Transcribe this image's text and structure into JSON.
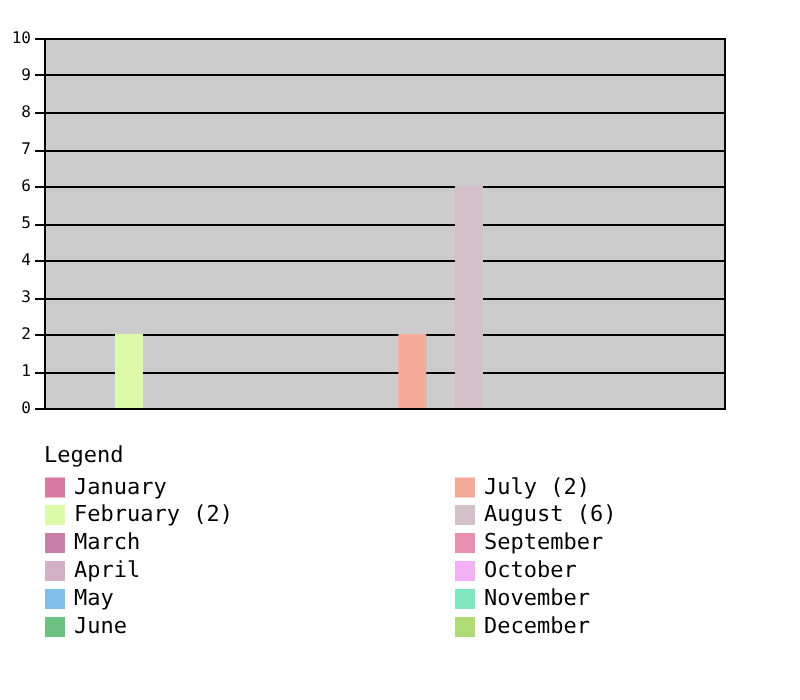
{
  "chart_data": {
    "type": "bar",
    "legend_title": "Legend",
    "categories": [
      null,
      null,
      null,
      null,
      null,
      null,
      null,
      null,
      null,
      null,
      null,
      null
    ],
    "series": [
      {
        "name": "January",
        "color": "#d87aa0",
        "values": [
          0,
          null,
          null,
          null,
          null,
          null,
          null,
          null,
          null,
          null,
          null,
          null
        ]
      },
      {
        "name": "February (2)",
        "color": "#ddfaa8",
        "values": [
          null,
          2,
          null,
          null,
          null,
          null,
          null,
          null,
          null,
          null,
          null,
          null
        ]
      },
      {
        "name": "March",
        "color": "#c880a8",
        "values": [
          null,
          null,
          0,
          null,
          null,
          null,
          null,
          null,
          null,
          null,
          null,
          null
        ]
      },
      {
        "name": "April",
        "color": "#d4b0c8",
        "values": [
          null,
          null,
          null,
          0,
          null,
          null,
          null,
          null,
          null,
          null,
          null,
          null
        ]
      },
      {
        "name": "May",
        "color": "#80c0e8",
        "values": [
          null,
          null,
          null,
          null,
          0,
          null,
          null,
          null,
          null,
          null,
          null,
          null
        ]
      },
      {
        "name": "June",
        "color": "#6cc080",
        "values": [
          null,
          null,
          null,
          null,
          null,
          0,
          null,
          null,
          null,
          null,
          null,
          null
        ]
      },
      {
        "name": "July (2)",
        "color": "#f4aa98",
        "values": [
          null,
          null,
          null,
          null,
          null,
          null,
          2,
          null,
          null,
          null,
          null,
          null
        ]
      },
      {
        "name": "August (6)",
        "color": "#d4c0c8",
        "values": [
          null,
          null,
          null,
          null,
          null,
          null,
          null,
          6,
          null,
          null,
          null,
          null
        ]
      },
      {
        "name": "September",
        "color": "#e890b0",
        "values": [
          null,
          null,
          null,
          null,
          null,
          null,
          null,
          null,
          0,
          null,
          null,
          null
        ]
      },
      {
        "name": "October",
        "color": "#f4b0f4",
        "values": [
          null,
          null,
          null,
          null,
          null,
          null,
          null,
          null,
          null,
          0,
          null,
          null
        ]
      },
      {
        "name": "November",
        "color": "#80e8c0",
        "values": [
          null,
          null,
          null,
          null,
          null,
          null,
          null,
          null,
          null,
          null,
          0,
          null
        ]
      },
      {
        "name": "December",
        "color": "#b0dc78",
        "values": [
          null,
          null,
          null,
          null,
          null,
          null,
          null,
          null,
          null,
          null,
          null,
          0
        ]
      }
    ],
    "ylim": [
      0,
      10
    ],
    "yticks": [
      0,
      1,
      2,
      3,
      4,
      5,
      6,
      7,
      8,
      9,
      10
    ],
    "grid": "y",
    "legend": "bottom",
    "tick_labels": "y"
  }
}
